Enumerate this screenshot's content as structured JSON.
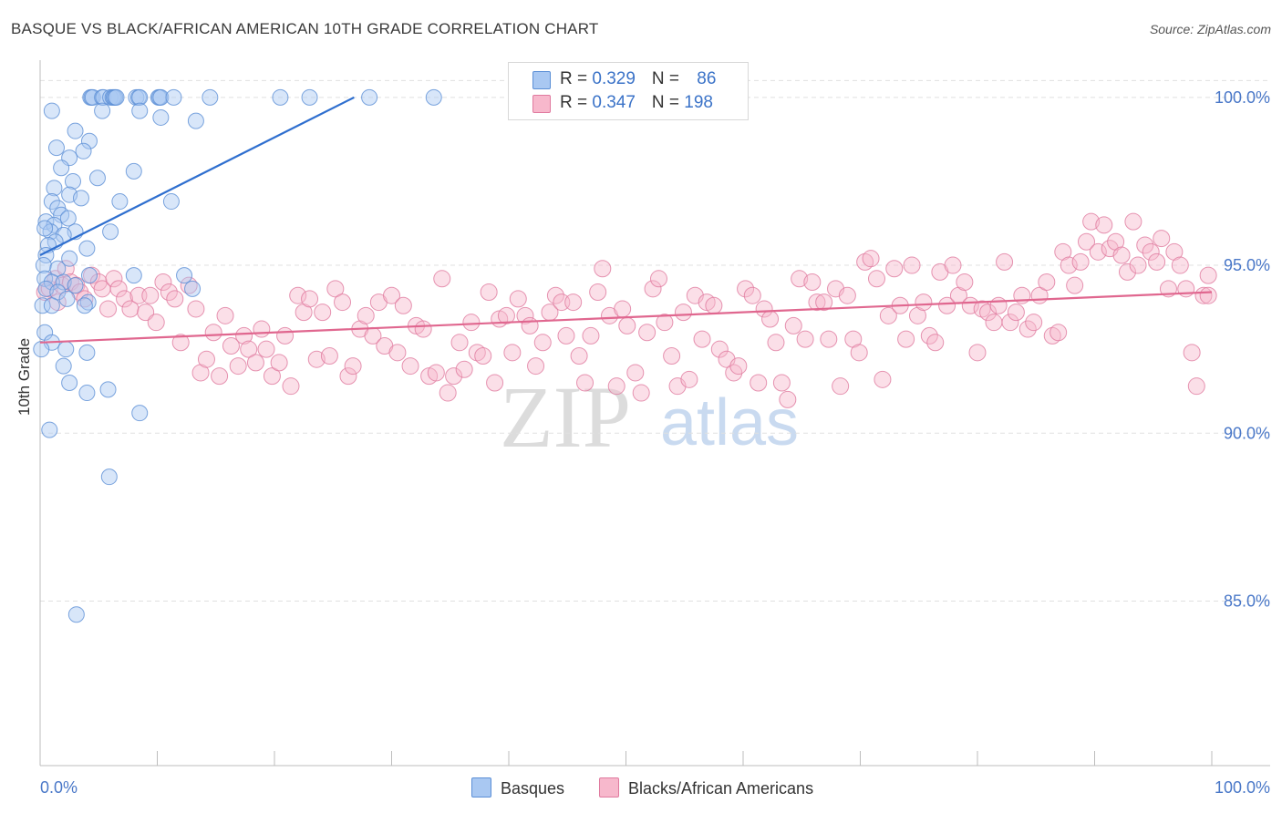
{
  "title": "BASQUE VS BLACK/AFRICAN AMERICAN 10TH GRADE CORRELATION CHART",
  "source": "Source: ZipAtlas.com",
  "watermark": {
    "part1": "ZIP",
    "part2": "atlas"
  },
  "legend": {
    "rows": [
      {
        "r_label": "R = ",
        "r_value": "0.329",
        "n_label": "N = ",
        "n_value": "86",
        "color": "#a9c8f2"
      },
      {
        "r_label": "R = ",
        "r_value": "0.347",
        "n_label": "N = ",
        "n_value": "198",
        "color": "#f7b8cc"
      }
    ]
  },
  "bottom_legend": {
    "basques": "Basques",
    "blacks": "Blacks/African Americans"
  },
  "colors": {
    "blue_fill": "#a9c8f2",
    "blue_stroke": "#5b8fd6",
    "blue_line": "#2f6fcf",
    "pink_fill": "#f7b8cc",
    "pink_stroke": "#e07a9f",
    "pink_line": "#e0678f",
    "tick_text": "#4a78c8",
    "grid": "#e0e0e0"
  },
  "chart_data": {
    "type": "scatter",
    "title": "BASQUE VS BLACK/AFRICAN AMERICAN 10TH GRADE CORRELATION CHART",
    "xlabel": "",
    "ylabel": "10th Grade",
    "xlim": [
      0,
      100
    ],
    "ylim": [
      80.1,
      101.0
    ],
    "x_tick_labels": [
      "0.0%",
      "100.0%"
    ],
    "y_ticks": [
      85,
      90,
      95,
      100
    ],
    "y_tick_labels": [
      "85.0%",
      "90.0%",
      "95.0%",
      "100.0%"
    ],
    "grid": true,
    "legend_position": "top-center",
    "series": [
      {
        "name": "Basques",
        "trend": {
          "x": [
            0,
            26.8
          ],
          "y": [
            95.3,
            100.0
          ]
        },
        "points": [
          [
            4.3,
            100
          ],
          [
            4.4,
            100
          ],
          [
            4.5,
            100
          ],
          [
            5.3,
            100
          ],
          [
            5.4,
            100
          ],
          [
            6.0,
            100
          ],
          [
            6.2,
            100
          ],
          [
            6.3,
            100
          ],
          [
            6.4,
            100
          ],
          [
            6.5,
            100
          ],
          [
            8.2,
            100
          ],
          [
            8.4,
            100
          ],
          [
            8.5,
            100
          ],
          [
            10.1,
            100
          ],
          [
            10.2,
            100
          ],
          [
            10.3,
            100
          ],
          [
            11.4,
            100
          ],
          [
            14.5,
            100
          ],
          [
            20.5,
            100
          ],
          [
            23.0,
            100
          ],
          [
            28.1,
            100
          ],
          [
            33.6,
            100
          ],
          [
            1.0,
            99.6
          ],
          [
            5.3,
            99.6
          ],
          [
            8.5,
            99.6
          ],
          [
            10.3,
            99.4
          ],
          [
            3.0,
            99.0
          ],
          [
            13.3,
            99.3
          ],
          [
            4.2,
            98.7
          ],
          [
            1.4,
            98.5
          ],
          [
            2.5,
            98.2
          ],
          [
            3.7,
            98.4
          ],
          [
            1.8,
            97.9
          ],
          [
            2.8,
            97.5
          ],
          [
            4.9,
            97.6
          ],
          [
            8.0,
            97.8
          ],
          [
            1.2,
            97.3
          ],
          [
            2.5,
            97.1
          ],
          [
            3.5,
            97.0
          ],
          [
            1.0,
            96.9
          ],
          [
            1.5,
            96.7
          ],
          [
            6.8,
            96.9
          ],
          [
            11.2,
            96.9
          ],
          [
            1.8,
            96.5
          ],
          [
            2.4,
            96.4
          ],
          [
            0.5,
            96.3
          ],
          [
            1.2,
            96.2
          ],
          [
            0.9,
            96.0
          ],
          [
            3.0,
            96.0
          ],
          [
            6.0,
            96.0
          ],
          [
            0.4,
            96.1
          ],
          [
            2.0,
            95.9
          ],
          [
            1.3,
            95.7
          ],
          [
            0.7,
            95.6
          ],
          [
            4.0,
            95.5
          ],
          [
            0.5,
            95.3
          ],
          [
            2.5,
            95.2
          ],
          [
            0.3,
            95.0
          ],
          [
            1.5,
            94.9
          ],
          [
            4.2,
            94.7
          ],
          [
            8.0,
            94.7
          ],
          [
            12.3,
            94.7
          ],
          [
            0.4,
            94.6
          ],
          [
            1.0,
            94.5
          ],
          [
            2.0,
            94.5
          ],
          [
            3.0,
            94.4
          ],
          [
            0.5,
            94.3
          ],
          [
            13.0,
            94.3
          ],
          [
            1.5,
            94.2
          ],
          [
            2.3,
            94.0
          ],
          [
            4.1,
            93.9
          ],
          [
            0.2,
            93.8
          ],
          [
            1.0,
            93.8
          ],
          [
            3.8,
            93.8
          ],
          [
            0.4,
            93.0
          ],
          [
            1.0,
            92.7
          ],
          [
            2.2,
            92.5
          ],
          [
            4.0,
            92.4
          ],
          [
            0.1,
            92.5
          ],
          [
            2.0,
            92.0
          ],
          [
            2.5,
            91.5
          ],
          [
            4.0,
            91.2
          ],
          [
            5.8,
            91.3
          ],
          [
            0.8,
            90.1
          ],
          [
            8.5,
            90.6
          ],
          [
            5.9,
            88.7
          ],
          [
            3.1,
            84.6
          ]
        ]
      },
      {
        "name": "Blacks/African Americans",
        "trend": {
          "x": [
            0,
            100
          ],
          "y": [
            92.7,
            94.2
          ]
        },
        "points": [
          [
            0.4,
            94.2
          ],
          [
            0.8,
            94.3
          ],
          [
            1.3,
            94.6
          ],
          [
            1.5,
            93.9
          ],
          [
            1.9,
            94.4
          ],
          [
            2.2,
            94.9
          ],
          [
            2.6,
            94.5
          ],
          [
            3.1,
            94.4
          ],
          [
            3.4,
            94.2
          ],
          [
            3.8,
            94.0
          ],
          [
            4.4,
            94.7
          ],
          [
            5.0,
            94.5
          ],
          [
            5.3,
            94.3
          ],
          [
            5.8,
            93.7
          ],
          [
            6.3,
            94.6
          ],
          [
            6.7,
            94.3
          ],
          [
            7.2,
            94.0
          ],
          [
            7.7,
            93.7
          ],
          [
            8.4,
            94.1
          ],
          [
            9.0,
            93.6
          ],
          [
            9.4,
            94.1
          ],
          [
            9.9,
            93.3
          ],
          [
            10.5,
            94.5
          ],
          [
            11.0,
            94.2
          ],
          [
            11.5,
            94.0
          ],
          [
            12.0,
            92.7
          ],
          [
            12.7,
            94.4
          ],
          [
            13.3,
            93.7
          ],
          [
            13.7,
            91.8
          ],
          [
            14.2,
            92.2
          ],
          [
            14.8,
            93.0
          ],
          [
            15.3,
            91.7
          ],
          [
            15.8,
            93.5
          ],
          [
            16.3,
            92.6
          ],
          [
            16.9,
            92.0
          ],
          [
            17.4,
            92.9
          ],
          [
            17.8,
            92.5
          ],
          [
            18.4,
            92.1
          ],
          [
            18.9,
            93.1
          ],
          [
            19.3,
            92.5
          ],
          [
            19.8,
            91.7
          ],
          [
            20.4,
            92.1
          ],
          [
            20.9,
            92.9
          ],
          [
            21.4,
            91.4
          ],
          [
            22.0,
            94.1
          ],
          [
            22.5,
            93.6
          ],
          [
            23.0,
            94.0
          ],
          [
            23.6,
            92.2
          ],
          [
            24.1,
            93.6
          ],
          [
            24.7,
            92.3
          ],
          [
            25.2,
            94.3
          ],
          [
            25.8,
            93.9
          ],
          [
            26.3,
            91.7
          ],
          [
            26.7,
            92.0
          ],
          [
            27.3,
            93.1
          ],
          [
            27.8,
            93.5
          ],
          [
            28.4,
            92.9
          ],
          [
            28.9,
            93.9
          ],
          [
            29.4,
            92.6
          ],
          [
            30.0,
            94.1
          ],
          [
            30.5,
            92.4
          ],
          [
            31.0,
            93.8
          ],
          [
            31.6,
            92.0
          ],
          [
            32.1,
            93.2
          ],
          [
            32.7,
            93.1
          ],
          [
            33.2,
            91.7
          ],
          [
            33.8,
            91.8
          ],
          [
            34.3,
            94.6
          ],
          [
            34.8,
            91.2
          ],
          [
            35.3,
            91.7
          ],
          [
            35.8,
            92.7
          ],
          [
            36.2,
            91.9
          ],
          [
            36.8,
            93.3
          ],
          [
            37.3,
            92.4
          ],
          [
            37.8,
            92.3
          ],
          [
            38.3,
            94.2
          ],
          [
            38.8,
            91.5
          ],
          [
            39.2,
            93.4
          ],
          [
            39.8,
            93.5
          ],
          [
            40.3,
            92.4
          ],
          [
            40.8,
            94.0
          ],
          [
            41.4,
            93.5
          ],
          [
            41.8,
            93.2
          ],
          [
            42.3,
            92.0
          ],
          [
            42.9,
            92.7
          ],
          [
            43.5,
            93.6
          ],
          [
            44.0,
            94.1
          ],
          [
            44.5,
            93.9
          ],
          [
            44.9,
            92.9
          ],
          [
            45.5,
            93.9
          ],
          [
            46.0,
            92.3
          ],
          [
            46.5,
            91.5
          ],
          [
            47.0,
            92.9
          ],
          [
            47.6,
            94.2
          ],
          [
            48.0,
            94.9
          ],
          [
            48.6,
            93.5
          ],
          [
            49.2,
            91.4
          ],
          [
            49.7,
            93.7
          ],
          [
            50.1,
            93.2
          ],
          [
            50.8,
            91.8
          ],
          [
            51.3,
            91.2
          ],
          [
            51.8,
            93.0
          ],
          [
            52.3,
            94.3
          ],
          [
            52.8,
            94.6
          ],
          [
            53.3,
            93.3
          ],
          [
            53.9,
            92.3
          ],
          [
            54.4,
            91.4
          ],
          [
            54.9,
            93.6
          ],
          [
            55.4,
            91.6
          ],
          [
            55.9,
            94.1
          ],
          [
            56.5,
            92.8
          ],
          [
            56.9,
            93.9
          ],
          [
            57.5,
            93.8
          ],
          [
            58.0,
            92.5
          ],
          [
            58.6,
            92.2
          ],
          [
            59.2,
            91.8
          ],
          [
            59.6,
            92.0
          ],
          [
            60.2,
            94.3
          ],
          [
            60.8,
            94.1
          ],
          [
            61.3,
            91.5
          ],
          [
            61.8,
            93.7
          ],
          [
            62.3,
            93.4
          ],
          [
            62.8,
            92.7
          ],
          [
            63.3,
            91.5
          ],
          [
            63.8,
            91.0
          ],
          [
            64.3,
            93.2
          ],
          [
            64.8,
            94.6
          ],
          [
            65.3,
            92.8
          ],
          [
            65.9,
            94.5
          ],
          [
            66.3,
            93.9
          ],
          [
            66.9,
            93.9
          ],
          [
            67.3,
            92.8
          ],
          [
            67.9,
            94.3
          ],
          [
            68.3,
            91.4
          ],
          [
            68.9,
            94.1
          ],
          [
            69.4,
            92.8
          ],
          [
            69.9,
            92.4
          ],
          [
            70.4,
            95.1
          ],
          [
            70.9,
            95.2
          ],
          [
            71.4,
            94.6
          ],
          [
            71.9,
            91.6
          ],
          [
            72.4,
            93.5
          ],
          [
            72.9,
            94.9
          ],
          [
            73.4,
            93.8
          ],
          [
            73.9,
            92.8
          ],
          [
            74.4,
            95.0
          ],
          [
            74.9,
            93.5
          ],
          [
            75.4,
            93.9
          ],
          [
            75.9,
            92.9
          ],
          [
            76.4,
            92.7
          ],
          [
            76.8,
            94.8
          ],
          [
            77.4,
            93.8
          ],
          [
            77.9,
            95.0
          ],
          [
            78.4,
            94.1
          ],
          [
            78.9,
            94.5
          ],
          [
            79.4,
            93.8
          ],
          [
            80.0,
            92.4
          ],
          [
            80.4,
            93.7
          ],
          [
            80.9,
            93.6
          ],
          [
            81.4,
            93.3
          ],
          [
            81.8,
            93.8
          ],
          [
            82.3,
            95.1
          ],
          [
            82.8,
            93.3
          ],
          [
            83.3,
            93.6
          ],
          [
            83.8,
            94.1
          ],
          [
            84.3,
            93.1
          ],
          [
            84.8,
            93.3
          ],
          [
            85.3,
            94.1
          ],
          [
            85.9,
            94.5
          ],
          [
            86.4,
            92.9
          ],
          [
            86.9,
            93.0
          ],
          [
            87.3,
            95.4
          ],
          [
            87.8,
            95.0
          ],
          [
            88.3,
            94.4
          ],
          [
            88.8,
            95.1
          ],
          [
            89.3,
            95.7
          ],
          [
            89.7,
            96.3
          ],
          [
            90.3,
            95.4
          ],
          [
            90.8,
            96.2
          ],
          [
            91.3,
            95.5
          ],
          [
            91.8,
            95.7
          ],
          [
            92.3,
            95.3
          ],
          [
            92.8,
            94.8
          ],
          [
            93.3,
            96.3
          ],
          [
            93.7,
            95.0
          ],
          [
            94.3,
            95.6
          ],
          [
            94.8,
            95.4
          ],
          [
            95.3,
            95.1
          ],
          [
            95.7,
            95.8
          ],
          [
            96.3,
            94.3
          ],
          [
            96.8,
            95.4
          ],
          [
            97.3,
            95.0
          ],
          [
            97.8,
            94.3
          ],
          [
            98.3,
            92.4
          ],
          [
            98.7,
            91.4
          ],
          [
            99.3,
            94.1
          ],
          [
            99.7,
            94.7
          ],
          [
            99.7,
            94.1
          ]
        ]
      }
    ]
  }
}
